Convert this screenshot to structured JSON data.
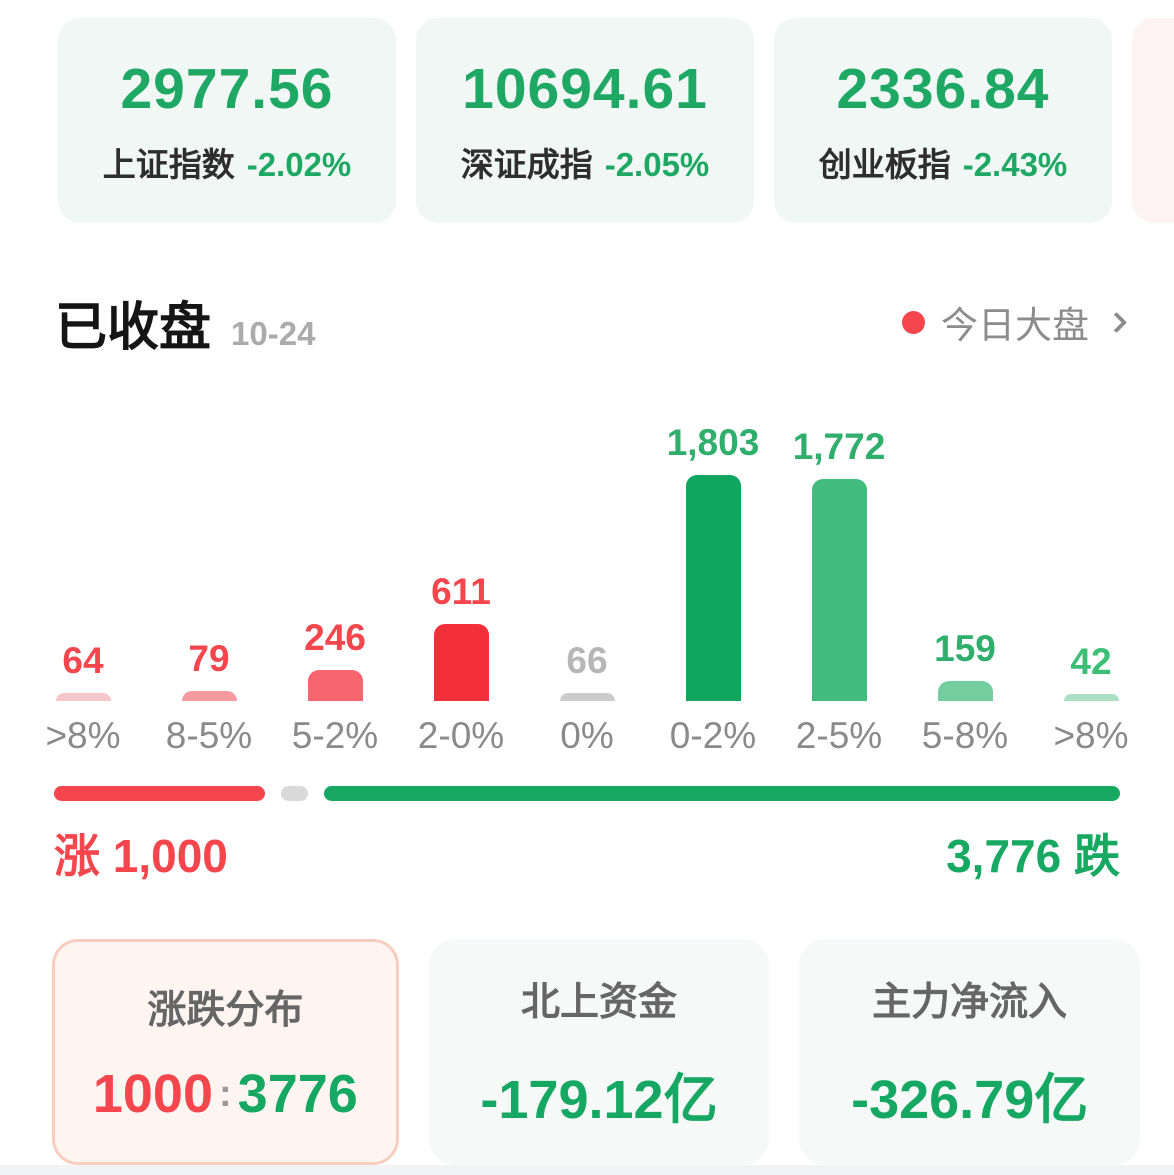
{
  "indices": {
    "cards": [
      {
        "value": "2977.56",
        "name": "上证指数",
        "change": "-2.02%"
      },
      {
        "value": "10694.61",
        "name": "深证成指",
        "change": "-2.05%"
      },
      {
        "value": "2336.84",
        "name": "创业板指",
        "change": "-2.43%"
      }
    ]
  },
  "section_header": {
    "status": "已收盘",
    "date": "10-24",
    "market_link": "今日大盘"
  },
  "chart_data": {
    "type": "bar",
    "title": "",
    "xlabel": "",
    "ylabel": "",
    "categories": [
      ">8%",
      "8-5%",
      "5-2%",
      "2-0%",
      "0%",
      "0-2%",
      "2-5%",
      "5-8%",
      ">8%"
    ],
    "values": [
      64,
      79,
      246,
      611,
      66,
      1803,
      1772,
      159,
      42
    ],
    "display_values": [
      "64",
      "79",
      "246",
      "611",
      "66",
      "1,803",
      "1,772",
      "159",
      "42"
    ],
    "bar_colors": [
      "#f7c6c9",
      "#f79aa0",
      "#f5666e",
      "#f3303a",
      "#cccccc",
      "#0fa660",
      "#41bc7e",
      "#74cd9f",
      "#abdfc4"
    ],
    "value_label_colors": [
      "#f5464d",
      "#f5464d",
      "#f5464d",
      "#f5464d",
      "#b6b6b6",
      "#2fae6c",
      "#2fae6c",
      "#2fae6c",
      "#3cbf75"
    ],
    "ylim": [
      0,
      1803
    ],
    "grid": false,
    "legend": false
  },
  "breadth": {
    "up": 1000,
    "flat": 66,
    "down": 3776,
    "up_text": "涨 1,000",
    "down_text": "3,776 跌",
    "up_color": "#f5464d",
    "flat_color": "#d9d9d9",
    "down_color": "#17a862"
  },
  "summary_cards": {
    "distribution": {
      "label": "涨跌分布",
      "up": "1000",
      "separator": ":",
      "down": "3776"
    },
    "northbound": {
      "label": "北上资金",
      "value": "-179.12亿"
    },
    "main_force": {
      "label": "主力净流入",
      "value": "-326.79亿"
    }
  },
  "colors": {
    "index_green": "#1fa863",
    "up_red": "#f5464d",
    "down_green": "#17a862",
    "card_bg_green": "#f1f7f4",
    "card_bg_pink": "#fdf3f3"
  }
}
